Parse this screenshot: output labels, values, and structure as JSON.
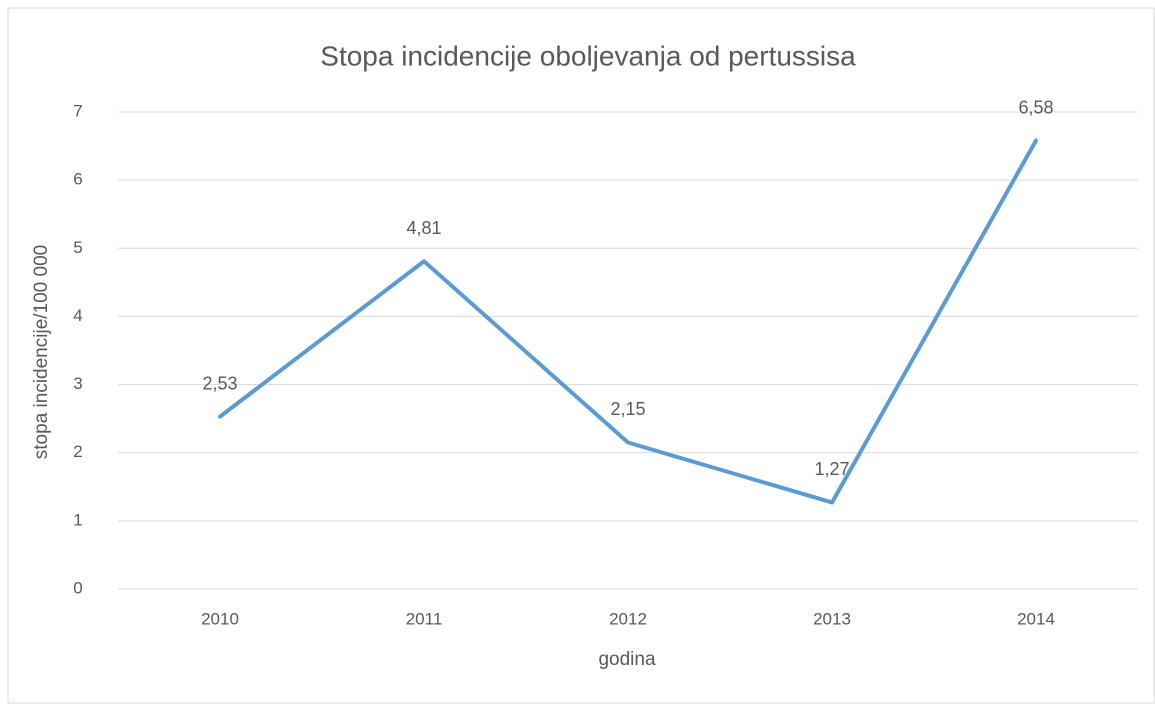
{
  "chart_data": {
    "type": "line",
    "title": "Stopa incidencije oboljevanja od pertussisa",
    "x_label": "godina",
    "y_label": "stopa incidencije/100 000",
    "categories": [
      "2010",
      "2011",
      "2012",
      "2013",
      "2014"
    ],
    "values": [
      2.53,
      4.81,
      2.15,
      1.27,
      6.58
    ],
    "value_labels": [
      "2,53",
      "4,81",
      "2,15",
      "1,27",
      "6,58"
    ],
    "color": "#5b9bd5",
    "ylim": [
      0,
      7
    ],
    "yticks": [
      0,
      1,
      2,
      3,
      4,
      5,
      6,
      7
    ],
    "grid": true
  }
}
